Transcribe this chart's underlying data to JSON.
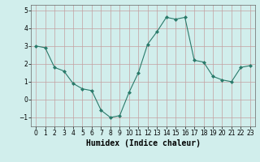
{
  "x": [
    0,
    1,
    2,
    3,
    4,
    5,
    6,
    7,
    8,
    9,
    10,
    11,
    12,
    13,
    14,
    15,
    16,
    17,
    18,
    19,
    20,
    21,
    22,
    23
  ],
  "y": [
    3.0,
    2.9,
    1.8,
    1.6,
    0.9,
    0.6,
    0.5,
    -0.6,
    -1.0,
    -0.9,
    0.4,
    1.5,
    3.1,
    3.8,
    4.6,
    4.5,
    4.6,
    2.2,
    2.1,
    1.3,
    1.1,
    1.0,
    1.8,
    1.9
  ],
  "line_color": "#2a7a6a",
  "marker": "D",
  "marker_size": 2.0,
  "bg_color": "#d1eeec",
  "grid_color": "#c4a0a0",
  "xlabel": "Humidex (Indice chaleur)",
  "xlim": [
    -0.5,
    23.5
  ],
  "ylim": [
    -1.5,
    5.3
  ],
  "yticks": [
    -1,
    0,
    1,
    2,
    3,
    4,
    5
  ],
  "xticks": [
    0,
    1,
    2,
    3,
    4,
    5,
    6,
    7,
    8,
    9,
    10,
    11,
    12,
    13,
    14,
    15,
    16,
    17,
    18,
    19,
    20,
    21,
    22,
    23
  ],
  "tick_labelsize": 5.5,
  "xlabel_fontsize": 7.0
}
